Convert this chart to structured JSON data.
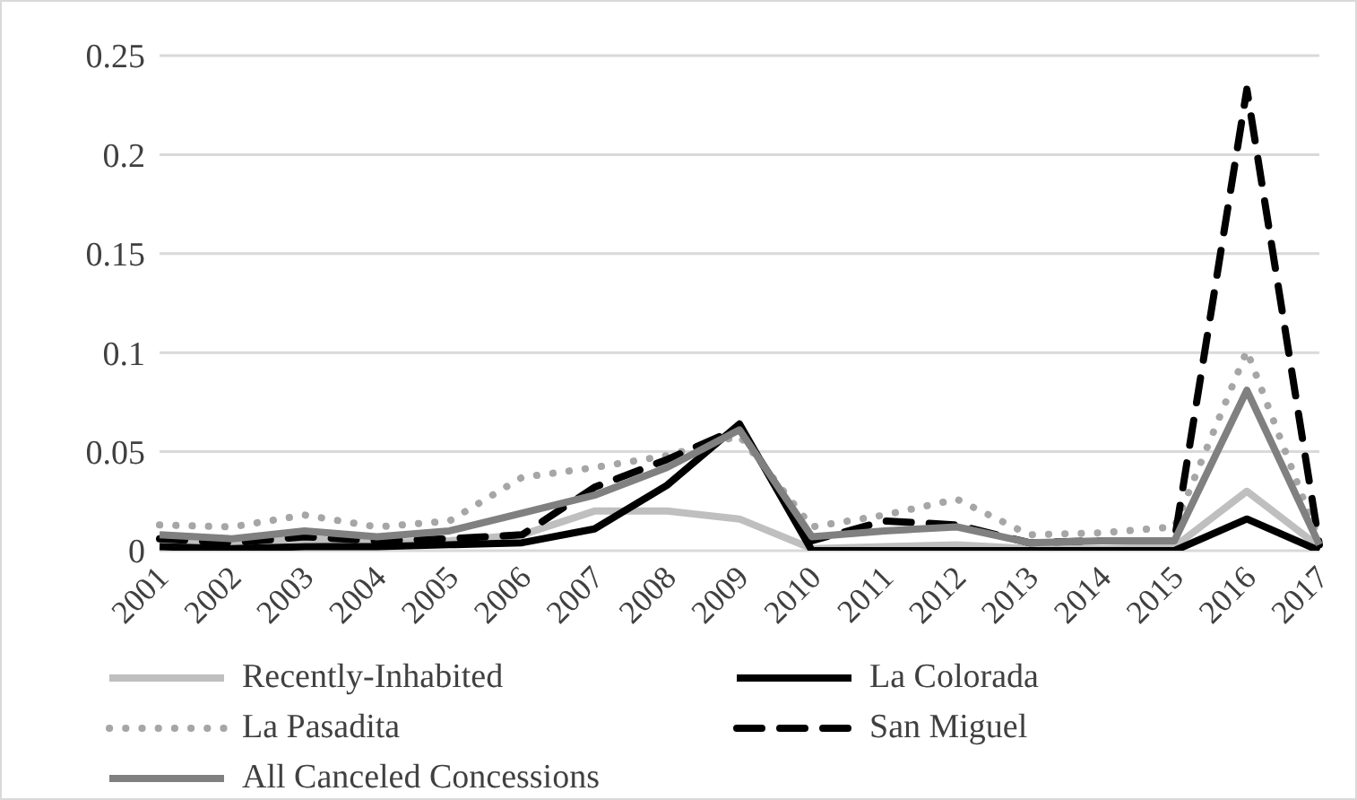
{
  "chart_data": {
    "type": "line",
    "categories": [
      "2001",
      "2002",
      "2003",
      "2004",
      "2005",
      "2006",
      "2007",
      "2008",
      "2009",
      "2010",
      "2011",
      "2012",
      "2013",
      "2014",
      "2015",
      "2016",
      "2017"
    ],
    "ylim": [
      0,
      0.25
    ],
    "yticks": [
      0,
      0.05,
      0.1,
      0.15,
      0.2,
      0.25
    ],
    "grid": "y",
    "legend": "bottom",
    "marker": "none",
    "series": [
      {
        "name": "Recently-Inhabited",
        "color": "#bfbfbf",
        "line_style": "solid",
        "values": [
          0.005,
          0.004,
          0.006,
          0.004,
          0.005,
          0.008,
          0.02,
          0.02,
          0.016,
          0.001,
          0.002,
          0.003,
          0.001,
          0.001,
          0.002,
          0.03,
          0.002
        ]
      },
      {
        "name": "La Colorada",
        "color": "#000000",
        "line_style": "solid",
        "values": [
          0.002,
          0.001,
          0.002,
          0.002,
          0.003,
          0.004,
          0.011,
          0.033,
          0.064,
          0,
          0,
          0,
          0,
          0,
          0,
          0.016,
          0
        ]
      },
      {
        "name": "La Pasadita",
        "color": "#a6a6a6",
        "line_style": "dotted",
        "values": [
          0.013,
          0.012,
          0.018,
          0.012,
          0.015,
          0.037,
          0.042,
          0.048,
          0.058,
          0.012,
          0.018,
          0.026,
          0.008,
          0.009,
          0.012,
          0.101,
          0.005
        ]
      },
      {
        "name": "San Miguel",
        "color": "#000000",
        "line_style": "dashed",
        "values": [
          0.006,
          0.004,
          0.007,
          0.005,
          0.006,
          0.008,
          0.032,
          0.046,
          0.062,
          0.005,
          0.015,
          0.013,
          0.004,
          0.005,
          0.005,
          0.233,
          0.003
        ]
      },
      {
        "name": "All Canceled Concessions",
        "color": "#808080",
        "line_style": "solid",
        "values": [
          0.008,
          0.006,
          0.01,
          0.007,
          0.01,
          0.019,
          0.028,
          0.042,
          0.061,
          0.007,
          0.01,
          0.012,
          0.004,
          0.005,
          0.005,
          0.081,
          0.003
        ]
      }
    ]
  }
}
